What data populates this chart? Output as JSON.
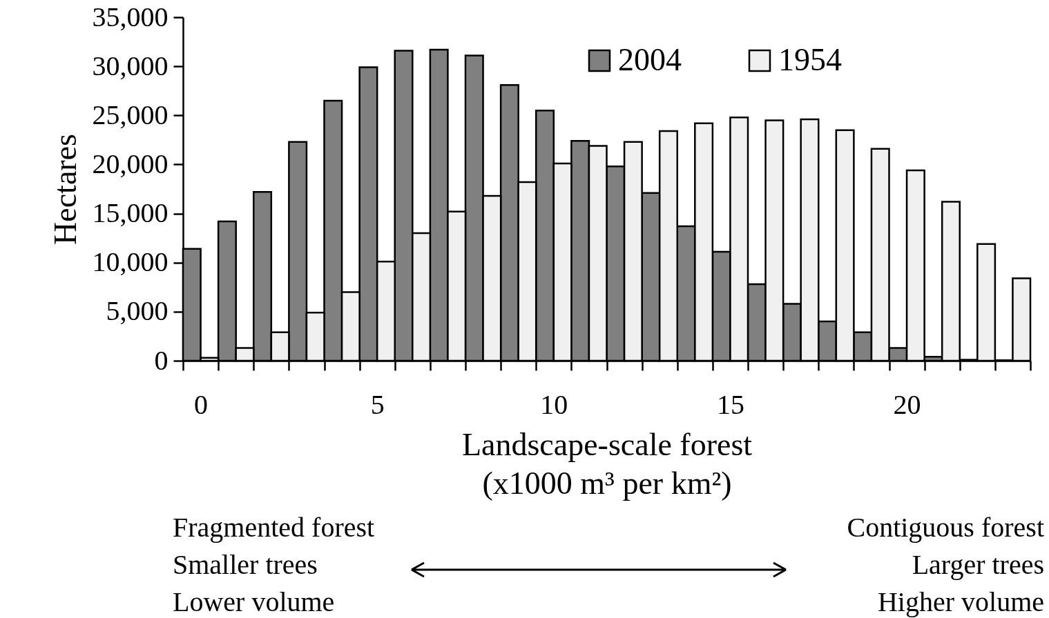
{
  "chart_data": {
    "type": "bar",
    "ylabel": "Hectares",
    "xlabel": "Landscape-scale forest\n(x1000 m³ per km²)",
    "categories": [
      "0",
      null,
      null,
      null,
      null,
      "5",
      null,
      null,
      null,
      null,
      "10",
      null,
      null,
      null,
      null,
      "15",
      null,
      null,
      null,
      null,
      "20",
      null,
      null,
      null
    ],
    "series": [
      {
        "name": "2004",
        "color": "#808080",
        "values": [
          11400,
          14200,
          17200,
          22300,
          26500,
          29900,
          31600,
          31700,
          31100,
          28100,
          25500,
          22400,
          19800,
          17100,
          13700,
          11100,
          7800,
          5800,
          4000,
          2900,
          1300,
          400,
          100,
          50
        ]
      },
      {
        "name": "1954",
        "color": "#f0f0f0",
        "values": [
          300,
          1300,
          2900,
          4900,
          7000,
          10100,
          13000,
          15200,
          16800,
          18200,
          20100,
          21900,
          22300,
          23400,
          24200,
          24800,
          24500,
          24600,
          23500,
          21600,
          19400,
          16200,
          11900,
          8400
        ]
      }
    ],
    "ylim": [
      0,
      35000
    ],
    "yticks": [
      0,
      {
        "value": 5000,
        "label": "5,000"
      },
      {
        "value": 10000,
        "label": "10,000"
      },
      {
        "value": 15000,
        "label": "15,000"
      },
      {
        "value": 20000,
        "label": "20,000"
      },
      {
        "value": 25000,
        "label": "25,000"
      },
      {
        "value": 30000,
        "label": "30,000"
      },
      {
        "value": 35000,
        "label": "35,000"
      }
    ],
    "grid": false,
    "legend": "top right",
    "annotations": [
      "Fragmented forest\nSmaller trees\nLower volume",
      "Contiguous forest\nLarger trees\nHigher volume"
    ]
  }
}
